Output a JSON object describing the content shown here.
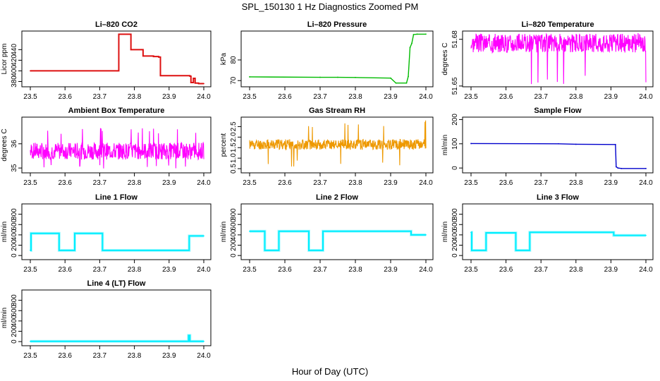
{
  "title": "SPL_150130  1 Hz Diagnostics Zoomed PM",
  "xlabel": "Hour of Day (UTC)",
  "chart_data": [
    {
      "type": "line",
      "title": "Li–820 CO2",
      "ylabel": "Licor ppm",
      "color": "#dd1010",
      "xlim": [
        23.5,
        24.0
      ],
      "ylim": [
        370,
        475
      ],
      "yticks": [
        380,
        400,
        420,
        440
      ],
      "xticks": [
        23.5,
        23.6,
        23.7,
        23.8,
        23.9,
        24.0
      ],
      "series": [
        {
          "name": "CO2",
          "mode": "step",
          "x": [
            23.5,
            23.75,
            23.755,
            23.785,
            23.79,
            23.82,
            23.825,
            23.85,
            23.855,
            23.87,
            23.875,
            23.96,
            23.963,
            23.97,
            23.975,
            23.985,
            24.0
          ],
          "y": [
            400,
            400,
            469,
            469,
            440,
            440,
            428,
            428,
            427,
            426,
            391,
            390,
            378,
            386,
            377,
            376,
            376
          ]
        }
      ]
    },
    {
      "type": "line",
      "title": "Li–820 Pressure",
      "ylabel": "kPa",
      "color": "#00bb00",
      "xlim": [
        23.5,
        24.0
      ],
      "ylim": [
        67,
        94
      ],
      "yticks": [
        70,
        80
      ],
      "xticks": [
        23.5,
        23.6,
        23.7,
        23.8,
        23.9,
        24.0
      ],
      "series": [
        {
          "name": "Pressure",
          "mode": "line",
          "x": [
            23.5,
            23.7,
            23.75,
            23.8,
            23.9,
            23.915,
            23.945,
            23.95,
            23.955,
            23.96,
            23.965,
            23.975,
            24.0
          ],
          "y": [
            71.8,
            71.6,
            71.6,
            71.5,
            71.2,
            68.8,
            68.8,
            72,
            86,
            88,
            92.3,
            92.5,
            92.5
          ]
        }
      ]
    },
    {
      "type": "line",
      "title": "Li–820 Temperature",
      "ylabel": "degrees C",
      "color": "#ff00ff",
      "xlim": [
        23.5,
        24.0
      ],
      "ylim": [
        51.6495,
        51.6853
      ],
      "yticks": [
        51.65,
        51.68
      ],
      "xticks": [
        23.5,
        23.6,
        23.7,
        23.8,
        23.9,
        24.0
      ],
      "series": [
        {
          "name": "Temperature",
          "mode": "noise",
          "base": 51.6775,
          "spread": 0.006,
          "spike_low": 51.651,
          "spike_high": 51.684,
          "seed": 3
        }
      ]
    },
    {
      "type": "line",
      "title": "Ambient Box Temperature",
      "ylabel": "degrees C",
      "color": "#ff00ff",
      "xlim": [
        23.5,
        24.0
      ],
      "ylim": [
        34.8,
        37.1
      ],
      "yticks": [
        35.0,
        36.0
      ],
      "xticks": [
        23.5,
        23.6,
        23.7,
        23.8,
        23.9,
        24.0
      ],
      "series": [
        {
          "name": "Box temperature",
          "mode": "noise",
          "base": 35.7,
          "spread": 0.35,
          "spike_low": 34.95,
          "spike_high": 36.7,
          "seed": 7
        }
      ]
    },
    {
      "type": "line",
      "title": "Gas Stream RH",
      "ylabel": "percent",
      "color": "#ee9900",
      "xlim": [
        23.5,
        24.0
      ],
      "ylim": [
        0.3,
        2.95
      ],
      "yticks": [
        0.5,
        1.0,
        1.5,
        2.0,
        2.5
      ],
      "xticks": [
        23.5,
        23.6,
        23.7,
        23.8,
        23.9,
        24.0
      ],
      "series": [
        {
          "name": "RH",
          "mode": "noise",
          "base": 1.65,
          "spread": 0.25,
          "spike_low": 0.6,
          "spike_high": 2.8,
          "seed": 11
        }
      ]
    },
    {
      "type": "line",
      "title": "Sample Flow",
      "ylabel": "ml/min",
      "color": "#0000cc",
      "xlim": [
        23.5,
        24.0
      ],
      "ylim": [
        -20,
        210
      ],
      "yticks": [
        0,
        100,
        200
      ],
      "xticks": [
        23.5,
        23.6,
        23.7,
        23.8,
        23.9,
        24.0
      ],
      "series": [
        {
          "name": "Sample flow",
          "mode": "line",
          "x": [
            23.5,
            23.75,
            23.8,
            23.913,
            23.915,
            23.92,
            23.93,
            24.0
          ],
          "y": [
            101,
            100,
            98,
            97,
            5,
            0,
            -2,
            -2
          ]
        }
      ]
    },
    {
      "type": "line",
      "title": "Line 1 Flow",
      "ylabel": "ml/min",
      "color": "#00eeff",
      "xlim": [
        23.5,
        24.0
      ],
      "ylim": [
        -80,
        1000
      ],
      "yticks": [
        0,
        200,
        400,
        600,
        800
      ],
      "xticks": [
        23.5,
        23.6,
        23.7,
        23.8,
        23.9,
        24.0
      ],
      "series": [
        {
          "name": "Line 1",
          "mode": "step",
          "x": [
            23.5,
            23.502,
            23.58,
            23.583,
            23.625,
            23.628,
            23.705,
            23.708,
            23.955,
            23.958,
            24.0
          ],
          "y": [
            100,
            430,
            430,
            100,
            100,
            430,
            430,
            100,
            100,
            380,
            380
          ]
        }
      ]
    },
    {
      "type": "line",
      "title": "Line 2 Flow",
      "ylabel": "ml/min",
      "color": "#00eeff",
      "xlim": [
        23.5,
        24.0
      ],
      "ylim": [
        -80,
        1000
      ],
      "yticks": [
        0,
        200,
        400,
        600,
        800
      ],
      "xticks": [
        23.5,
        23.6,
        23.7,
        23.8,
        23.9,
        24.0
      ],
      "series": [
        {
          "name": "Line 2",
          "mode": "step",
          "x": [
            23.5,
            23.54,
            23.543,
            23.58,
            23.583,
            23.665,
            23.668,
            23.705,
            23.708,
            23.955,
            23.958,
            24.0
          ],
          "y": [
            470,
            470,
            100,
            100,
            470,
            470,
            100,
            100,
            470,
            470,
            400,
            400
          ]
        }
      ]
    },
    {
      "type": "line",
      "title": "Line 3 Flow",
      "ylabel": "ml/min",
      "color": "#00eeff",
      "xlim": [
        23.5,
        24.0
      ],
      "ylim": [
        -80,
        1000
      ],
      "yticks": [
        0,
        200,
        400,
        600,
        800
      ],
      "xticks": [
        23.5,
        23.6,
        23.7,
        23.8,
        23.9,
        24.0
      ],
      "series": [
        {
          "name": "Line 3",
          "mode": "step",
          "x": [
            23.5,
            23.502,
            23.54,
            23.543,
            23.625,
            23.628,
            23.665,
            23.668,
            23.905,
            23.908,
            24.0
          ],
          "y": [
            450,
            100,
            100,
            440,
            440,
            100,
            100,
            450,
            450,
            390,
            390
          ]
        }
      ]
    },
    {
      "type": "line",
      "title": "Line 4 (LT) Flow",
      "ylabel": "ml/min",
      "color": "#00eeff",
      "xlim": [
        23.5,
        24.0
      ],
      "ylim": [
        -80,
        1000
      ],
      "yticks": [
        0,
        200,
        400,
        600,
        800
      ],
      "xticks": [
        23.5,
        23.6,
        23.7,
        23.8,
        23.9,
        24.0
      ],
      "series": [
        {
          "name": "Line 4",
          "mode": "step",
          "x": [
            23.5,
            23.955,
            23.956,
            23.958,
            23.96,
            24.0
          ],
          "y": [
            5,
            5,
            120,
            120,
            5,
            5
          ]
        }
      ]
    }
  ]
}
